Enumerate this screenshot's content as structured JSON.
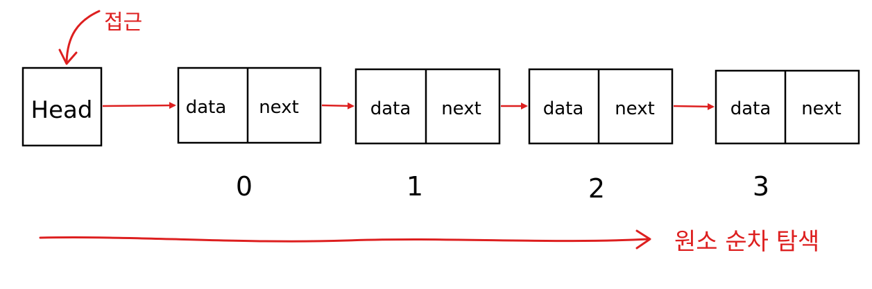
{
  "annotation": {
    "access_label": "접근"
  },
  "head": {
    "label": "Head"
  },
  "nodes": [
    {
      "data_label": "data",
      "next_label": "next",
      "index": "0"
    },
    {
      "data_label": "data",
      "next_label": "next",
      "index": "1"
    },
    {
      "data_label": "data",
      "next_label": "next",
      "index": "2"
    },
    {
      "data_label": "data",
      "next_label": "next",
      "index": "3"
    }
  ],
  "traversal": {
    "label": "원소 순차 탐색"
  },
  "colors": {
    "stroke": "#000000",
    "accent": "#dd1f1f",
    "background": "#ffffff"
  }
}
